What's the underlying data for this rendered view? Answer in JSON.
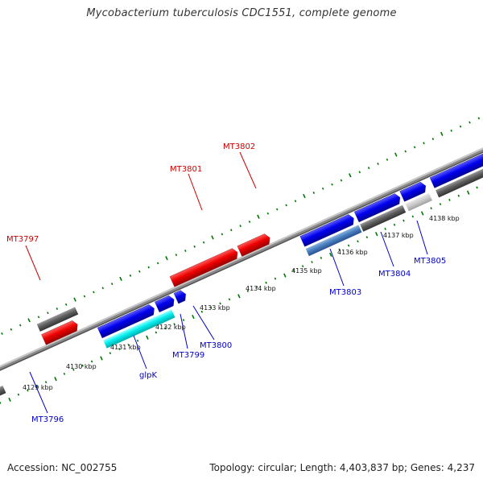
{
  "title": "Mycobacterium tuberculosis CDC1551, complete genome",
  "footer": {
    "accession": "Accession: NC_002755",
    "summary": "Topology: circular; Length: 4,403,837 bp; Genes: 4,237"
  },
  "colors": {
    "forward_cds": "#0000ee",
    "reverse_cds": "#ee0000",
    "other_feature": "#555555",
    "label_forward": "#0000cc",
    "label_reverse": "#cc0000",
    "glpK": "#00eeee",
    "highlight": "#4a80c0",
    "ruler_dots": "#007700"
  },
  "labels": {
    "MT3797": "MT3797",
    "MT3801": "MT3801",
    "MT3802": "MT3802",
    "MT3796": "MT3796",
    "glpK": "glpK",
    "MT3799": "MT3799",
    "MT3800": "MT3800",
    "MT3803": "MT3803",
    "MT3804": "MT3804",
    "MT3805": "MT3805"
  },
  "ticks": [
    "4129 kbp",
    "4130 kbp",
    "4131 kbp",
    "4132 kbp",
    "4133 kbp",
    "4134 kbp",
    "4135 kbp",
    "4136 kbp",
    "4137 kbp",
    "4138 kbp"
  ]
}
